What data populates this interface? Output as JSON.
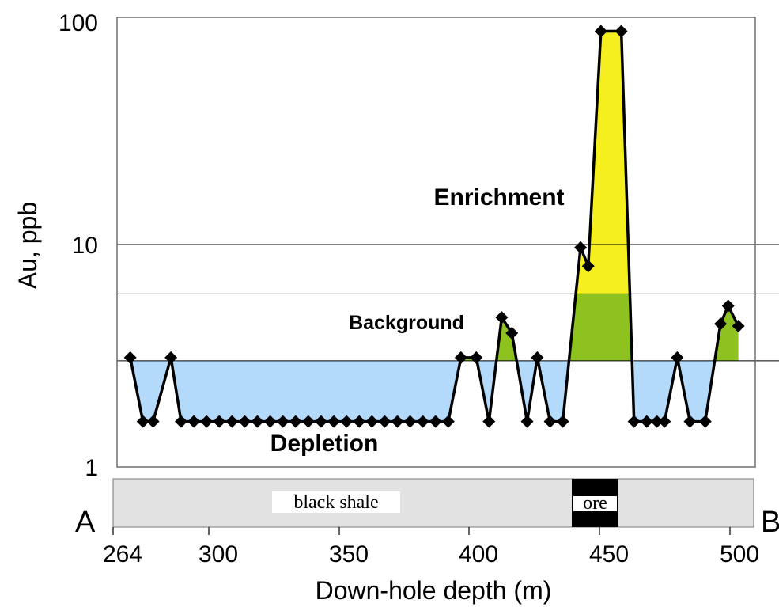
{
  "chart_data": {
    "type": "line",
    "title": "",
    "xlabel": "Down-hole depth (m)",
    "ylabel": "Au, ppb",
    "x_ticks": [
      264,
      300,
      350,
      400,
      450,
      500
    ],
    "y_ticks": [
      1,
      10,
      100
    ],
    "y_scale": "log",
    "xlim": [
      264,
      508
    ],
    "ylim": [
      1,
      100
    ],
    "grid": "horizontal lines at 3.0, 6.0 and 10 ppb",
    "background_range": [
      3.0,
      6.0
    ],
    "series": [
      {
        "x": [
          267,
          272,
          276,
          283,
          287,
          292,
          297,
          302,
          307,
          312,
          317,
          322,
          327,
          332,
          337,
          342,
          347,
          352,
          357,
          362,
          367,
          372,
          377,
          382,
          387,
          392,
          397,
          403,
          408,
          413,
          417,
          423,
          427,
          432,
          437,
          444,
          447,
          452,
          460,
          465,
          470,
          474,
          477,
          482,
          487,
          493,
          499,
          502,
          506
        ],
        "y": [
          3.1,
          1.6,
          1.6,
          3.1,
          1.6,
          1.6,
          1.6,
          1.6,
          1.6,
          1.6,
          1.6,
          1.6,
          1.6,
          1.6,
          1.6,
          1.6,
          1.6,
          1.6,
          1.6,
          1.6,
          1.6,
          1.6,
          1.6,
          1.6,
          1.6,
          1.6,
          3.1,
          3.1,
          1.6,
          4.7,
          4.0,
          1.6,
          3.1,
          1.6,
          1.6,
          9.7,
          8.0,
          91,
          91,
          1.6,
          1.6,
          1.6,
          1.6,
          3.1,
          1.6,
          1.6,
          4.4,
          5.3,
          4.3
        ]
      }
    ],
    "annotations": {
      "enrichment": "Enrichment",
      "background": "Background",
      "depletion": "Depletion"
    },
    "lithology": {
      "end_left": "A",
      "end_right": "B",
      "host": "black shale",
      "ore": "ore",
      "ore_interval": [
        441,
        459
      ]
    },
    "colors": {
      "enrichment": "#f5ef1f",
      "background": "#8dc21f",
      "depletion": "#b3d9fb",
      "strip": "#e2e2e2",
      "line": "#000000"
    }
  }
}
